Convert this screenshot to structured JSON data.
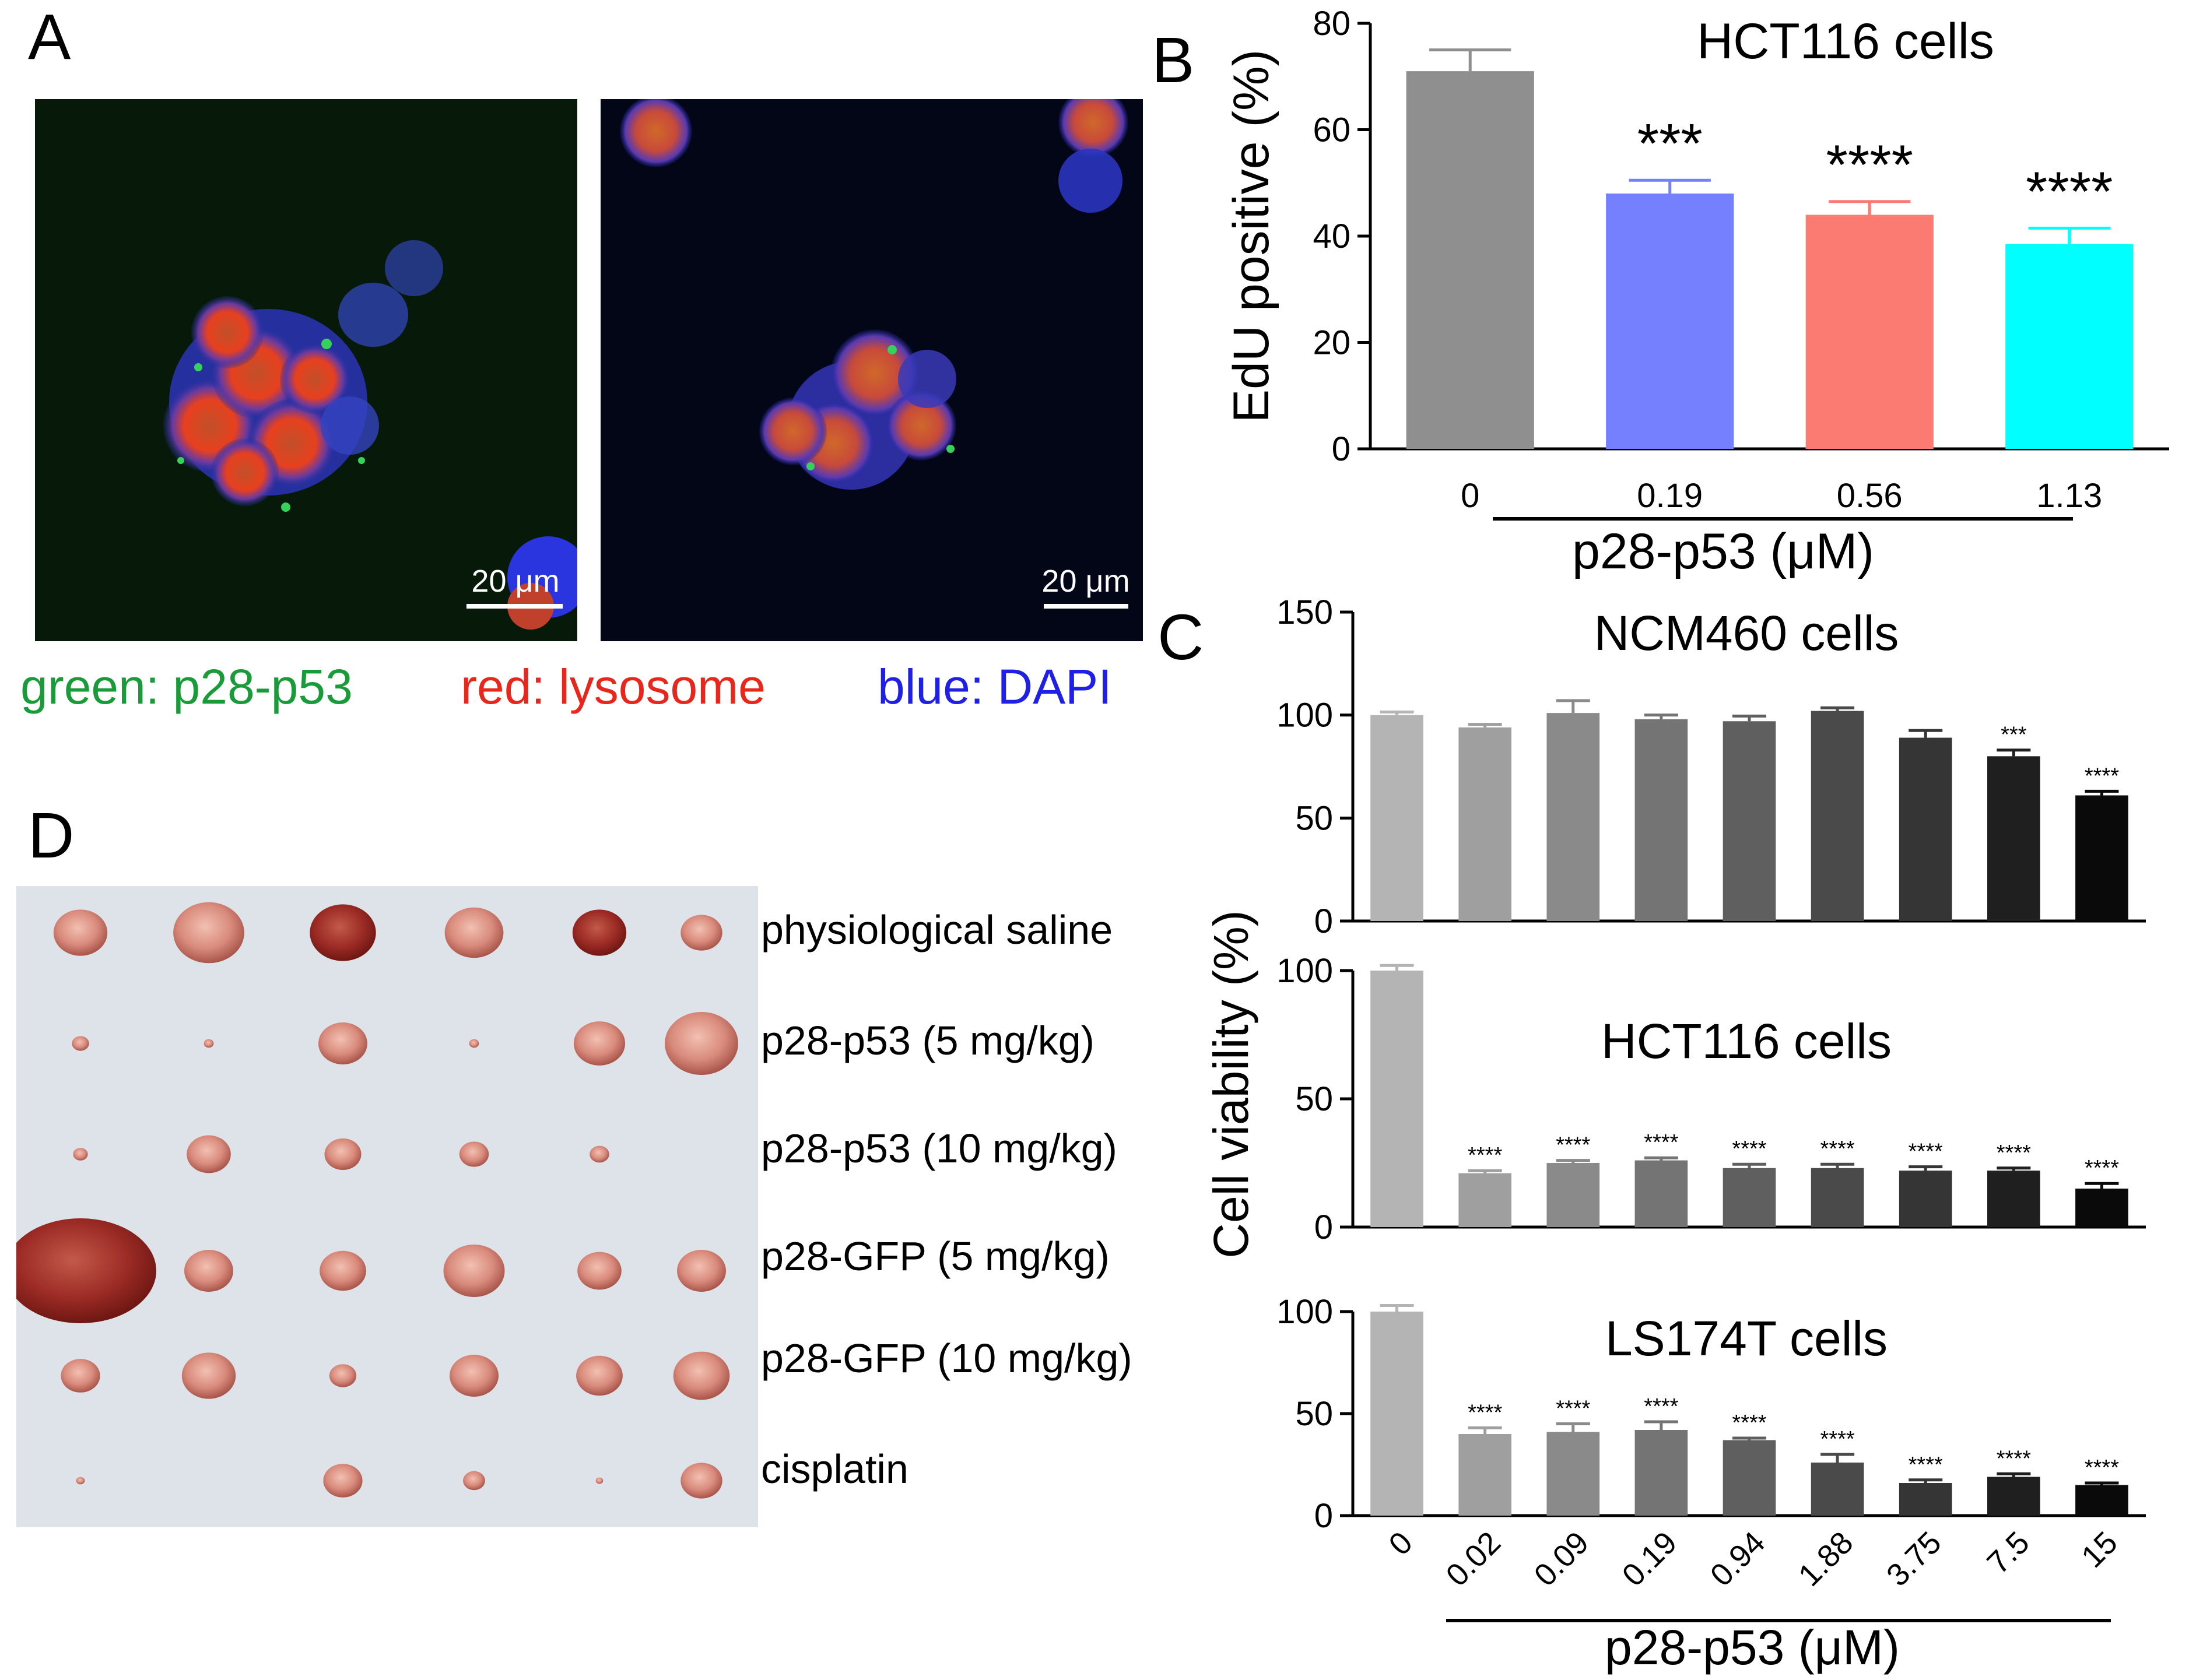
{
  "panels": {
    "A": {
      "label": "A",
      "scale_bar_left": "20 μm",
      "scale_bar_right": "20 μm",
      "legend": {
        "green": "green: p28-p53",
        "red": "red: lysosome",
        "blue": "blue: DAPI"
      },
      "legend_colors": {
        "green": "#1a9b3a",
        "red": "#e8261c",
        "blue": "#1f1fe6"
      }
    },
    "B": {
      "label": "B"
    },
    "C": {
      "label": "C"
    },
    "D": {
      "label": "D",
      "row_labels": [
        "physiological saline",
        "p28-p53 (5 mg/kg)",
        "p28-p53 (10 mg/kg)",
        "p28-GFP (5 mg/kg)",
        "p28-GFP (10 mg/kg)",
        "cisplatin"
      ]
    }
  },
  "chart_data": [
    {
      "id": "B",
      "type": "bar",
      "title": "HCT116 cells",
      "ylabel": "EdU positive (%)",
      "xlabel": "p28-p53 (μM)",
      "ylim": [
        0,
        80
      ],
      "yticks": [
        0,
        20,
        40,
        60,
        80
      ],
      "categories": [
        "0",
        "0.19",
        "0.56",
        "1.13"
      ],
      "values": [
        71,
        48,
        44,
        38.5
      ],
      "errors": [
        4,
        2.5,
        2.5,
        3
      ],
      "significance": [
        "",
        "***",
        "****",
        "****"
      ],
      "colors": [
        "#8f8f8f",
        "#7480ff",
        "#fb7b73",
        "#00ffff"
      ]
    },
    {
      "id": "C1",
      "type": "bar",
      "title": "NCM460 cells",
      "ylim": [
        0,
        150
      ],
      "yticks": [
        0,
        50,
        100,
        150
      ],
      "categories": [
        "0",
        "0.02",
        "0.09",
        "0.19",
        "0.94",
        "1.88",
        "3.75",
        "7.5",
        "15"
      ],
      "values": [
        100,
        94,
        101,
        98,
        97,
        102,
        89,
        80,
        61
      ],
      "errors": [
        1.5,
        1.5,
        6,
        2,
        2.5,
        1.5,
        3.5,
        3,
        2
      ],
      "significance": [
        "",
        "",
        "",
        "",
        "",
        "",
        "",
        "***",
        "****"
      ]
    },
    {
      "id": "C2",
      "type": "bar",
      "title": "HCT116 cells",
      "ylabel": "Cell viability (%)",
      "ylim": [
        0,
        100
      ],
      "yticks": [
        0,
        50,
        100
      ],
      "categories": [
        "0",
        "0.02",
        "0.09",
        "0.19",
        "0.94",
        "1.88",
        "3.75",
        "7.5",
        "15"
      ],
      "values": [
        100,
        21,
        25,
        26,
        23,
        23,
        22,
        22,
        15
      ],
      "errors": [
        2,
        1,
        1,
        1,
        1.5,
        1.5,
        1.5,
        1,
        2
      ],
      "significance": [
        "",
        "****",
        "****",
        "****",
        "****",
        "****",
        "****",
        "****",
        "****"
      ]
    },
    {
      "id": "C3",
      "type": "bar",
      "title": "LS174T cells",
      "xlabel": "p28-p53 (μM)",
      "ylim": [
        0,
        100
      ],
      "yticks": [
        0,
        50,
        100
      ],
      "categories": [
        "0",
        "0.02",
        "0.09",
        "0.19",
        "0.94",
        "1.88",
        "3.75",
        "7.5",
        "15"
      ],
      "values": [
        100,
        40,
        41,
        42,
        37,
        26,
        16,
        19,
        15
      ],
      "errors": [
        3,
        3,
        4,
        4,
        1,
        4,
        1.5,
        1.5,
        1
      ],
      "significance": [
        "",
        "****",
        "****",
        "****",
        "****",
        "****",
        "****",
        "****",
        "****"
      ]
    }
  ]
}
